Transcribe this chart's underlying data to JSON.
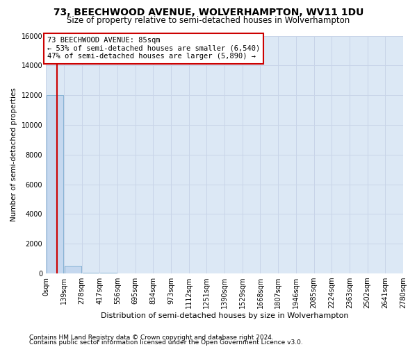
{
  "title": "73, BEECHWOOD AVENUE, WOLVERHAMPTON, WV11 1DU",
  "subtitle": "Size of property relative to semi-detached houses in Wolverhampton",
  "xlabel": "Distribution of semi-detached houses by size in Wolverhampton",
  "ylabel": "Number of semi-detached properties",
  "footer1": "Contains HM Land Registry data © Crown copyright and database right 2024.",
  "footer2": "Contains public sector information licensed under the Open Government Licence v3.0.",
  "property_size": 85,
  "property_label": "73 BEECHWOOD AVENUE: 85sqm",
  "pct_smaller": 53,
  "pct_larger": 47,
  "count_smaller": 6540,
  "count_larger": 5890,
  "bin_width": 139,
  "num_bins": 20,
  "bar_values": [
    12000,
    500,
    50,
    30,
    20,
    15,
    10,
    8,
    6,
    5,
    4,
    3,
    2,
    2,
    1,
    1,
    1,
    1,
    0,
    0
  ],
  "bar_color": "#c5d8ef",
  "bar_edge_color": "#7aabcf",
  "grid_color": "#c8d4e8",
  "bg_color": "#dce8f5",
  "ylim": [
    0,
    16000
  ],
  "yticks": [
    0,
    2000,
    4000,
    6000,
    8000,
    10000,
    12000,
    14000,
    16000
  ],
  "red_line_color": "#cc0000",
  "title_fontsize": 10,
  "subtitle_fontsize": 8.5,
  "tick_fontsize": 7,
  "ylabel_fontsize": 7.5,
  "xlabel_fontsize": 8,
  "footer_fontsize": 6.5,
  "annotation_fontsize": 7.5
}
